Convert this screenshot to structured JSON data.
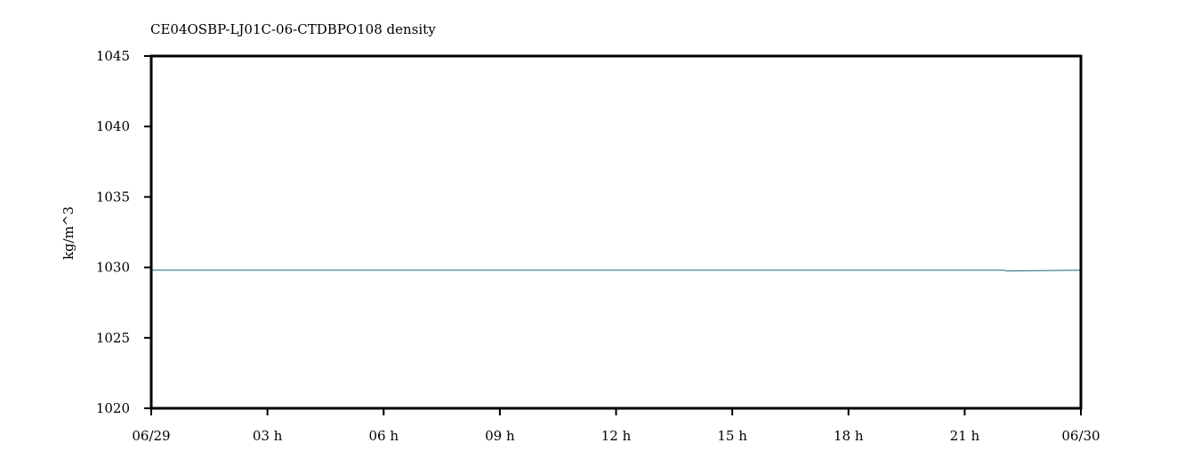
{
  "chart_data": {
    "type": "line",
    "title": "CE04OSBP-LJ01C-06-CTDBPO108 density",
    "xlabel": "",
    "ylabel": "kg/m^3",
    "x_tick_labels": [
      "06/29",
      "03 h",
      "06 h",
      "09 h",
      "12 h",
      "15 h",
      "18 h",
      "21 h",
      "06/30"
    ],
    "x_tick_hours": [
      0,
      3,
      6,
      9,
      12,
      15,
      18,
      21,
      24
    ],
    "xlim_hours": [
      0,
      24
    ],
    "ylim": [
      1020,
      1045
    ],
    "y_ticks": [
      1020,
      1025,
      1030,
      1035,
      1040,
      1045
    ],
    "grid": false,
    "series": [
      {
        "color": "#1f5f7a",
        "x_hours": [
          0,
          3,
          6,
          9,
          12,
          15,
          18,
          21,
          22,
          22.1,
          24
        ],
        "values": [
          1029.8,
          1029.8,
          1029.8,
          1029.8,
          1029.8,
          1029.8,
          1029.8,
          1029.8,
          1029.8,
          1029.75,
          1029.8
        ]
      }
    ]
  }
}
